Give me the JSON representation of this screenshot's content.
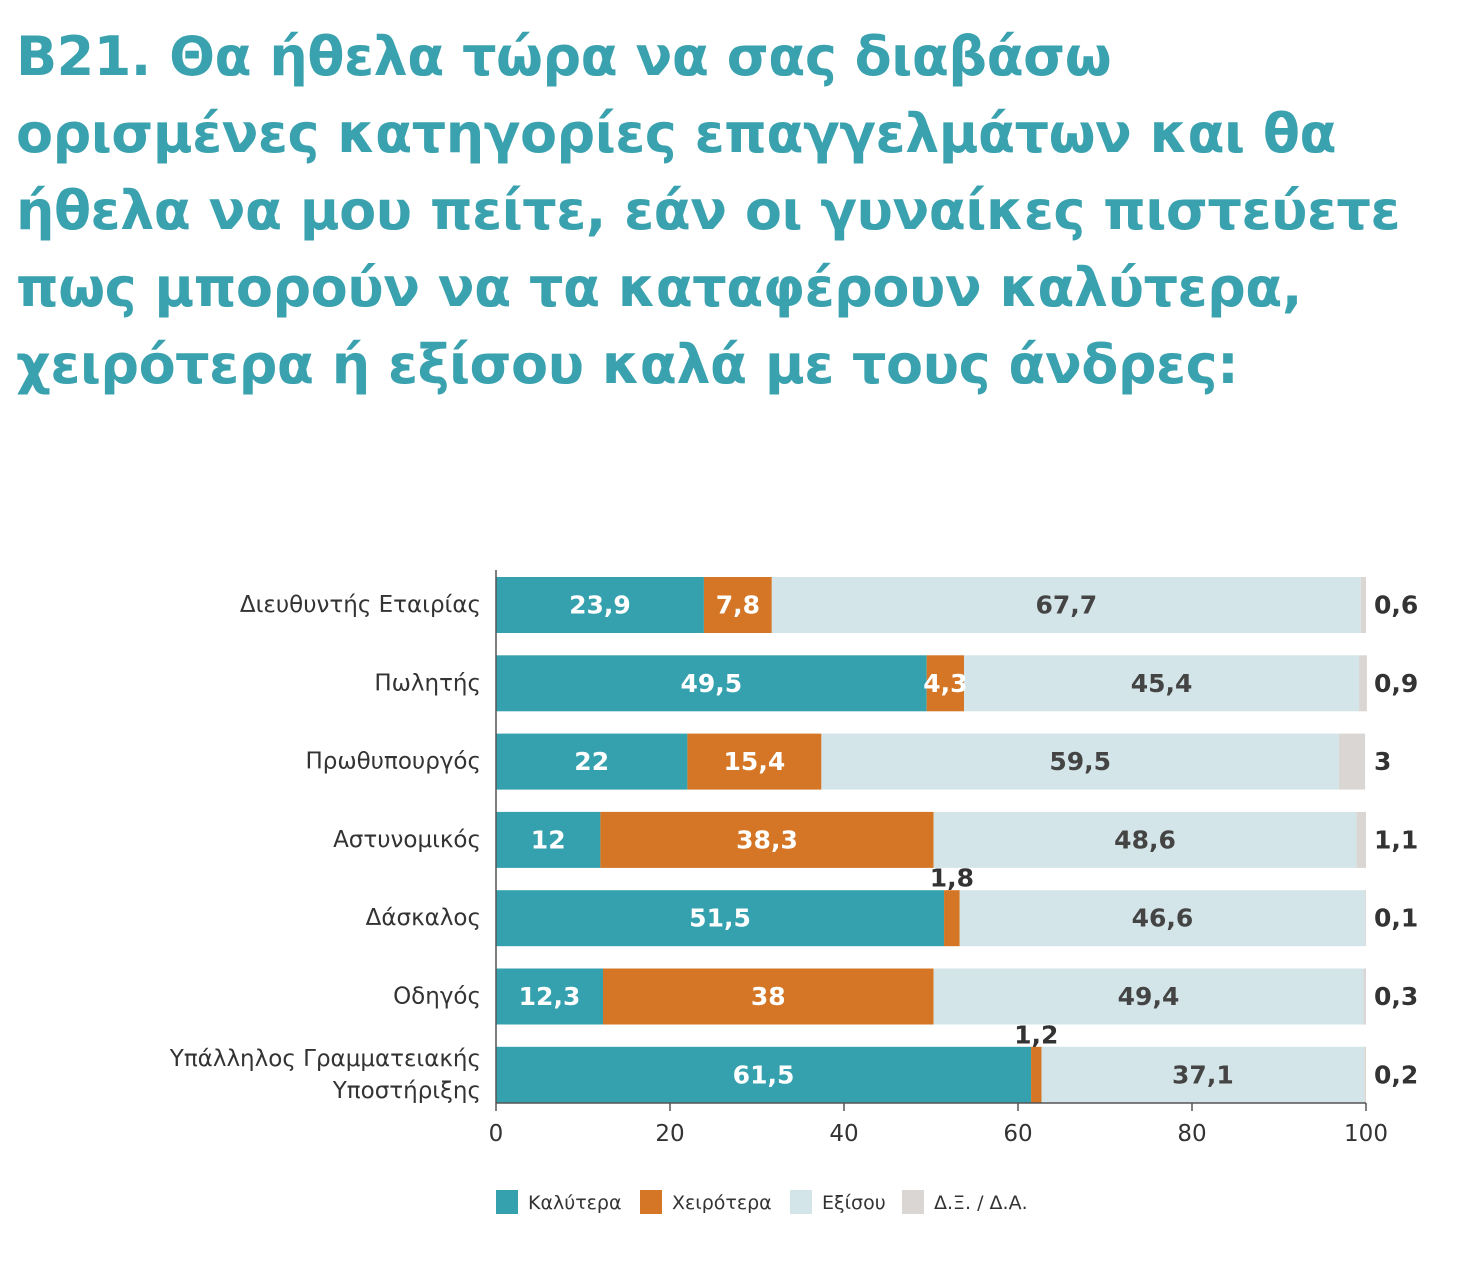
{
  "title": "B21. Θα ήθελα τώρα να σας διαβάσω ορισμένες κατηγορίες επαγγελμάτων και θα ήθελα να μου πείτε, εάν οι γυναίκες πιστεύετε πως μπορούν να τα καταφέρουν καλύτερα, χειρότερα ή εξίσου καλά με τους άνδρες:",
  "title_lines": [
    "B21. Θα ήθελα τώρα να σας διαβάσω",
    "ορισμένες κατηγορίες επαγγελμάτων και θα",
    "ήθελα να μου πείτε, εάν οι γυναίκες πιστεύετε",
    "πως μπορούν να τα καταφέρουν καλύτερα,",
    "χειρότερα ή εξίσου καλά με τους άνδρες:"
  ],
  "chart_data": {
    "type": "bar",
    "orientation": "horizontal",
    "stacked": true,
    "categories": [
      "Διευθυντής Εταιρίας",
      "Πωλητής",
      "Πρωθυπουργός",
      "Αστυνομικός",
      "Δάσκαλος",
      "Οδηγός",
      "Υπάλληλος Γραμματειακής Υποστήριξης"
    ],
    "category_lines": [
      [
        "Διευθυντής Εταιρίας"
      ],
      [
        "Πωλητής"
      ],
      [
        "Πρωθυπουργός"
      ],
      [
        "Αστυνομικός"
      ],
      [
        "Δάσκαλος"
      ],
      [
        "Οδηγός"
      ],
      [
        "Υπάλληλος Γραμματειακής",
        "Υποστήριξης"
      ]
    ],
    "series": [
      {
        "name": "Καλύτερα",
        "color": "#35a1ae",
        "values": [
          23.9,
          49.5,
          22,
          12,
          51.5,
          12.3,
          61.5
        ],
        "labels": [
          "23,9",
          "49,5",
          "22",
          "12",
          "51,5",
          "12,3",
          "61,5"
        ]
      },
      {
        "name": "Χειρότερα",
        "color": "#d47626",
        "values": [
          7.8,
          4.3,
          15.4,
          38.3,
          1.8,
          38,
          1.2
        ],
        "labels": [
          "7,8",
          "4,3",
          "15,4",
          "38,3",
          "1,8",
          "38",
          "1,2"
        ]
      },
      {
        "name": "Εξίσου",
        "color": "#d3e5e8",
        "values": [
          67.7,
          45.4,
          59.5,
          48.6,
          46.6,
          49.4,
          37.1
        ],
        "labels": [
          "67,7",
          "45,4",
          "59,5",
          "48,6",
          "46,6",
          "49,4",
          "37,1"
        ]
      },
      {
        "name": "Δ.Ξ. / Δ.Α.",
        "color": "#dad6d3",
        "values": [
          0.6,
          0.9,
          3,
          1.1,
          0.1,
          0.3,
          0.2
        ],
        "labels": [
          "0,6",
          "0,9",
          "3",
          "1,1",
          "0,1",
          "0,3",
          "0,2"
        ]
      }
    ],
    "xlim": [
      0,
      100
    ],
    "xticks": [
      0,
      20,
      40,
      60,
      80,
      100
    ],
    "label_colors": {
      "on_dark": "#ffffff",
      "on_light": "#444444",
      "outside": "#333333"
    },
    "legend_position": "bottom",
    "grid": false
  }
}
